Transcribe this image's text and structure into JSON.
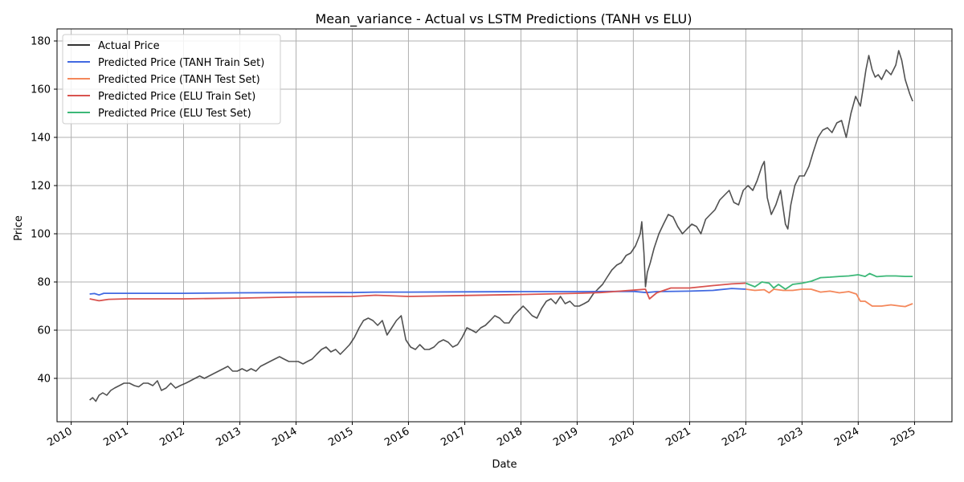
{
  "chart_data": {
    "type": "line",
    "title": "Mean_variance - Actual vs LSTM Predictions (TANH vs ELU)",
    "xlabel": "Date",
    "ylabel": "Price",
    "xlim": [
      "2009-10-01",
      "2025-09-01"
    ],
    "ylim": [
      22,
      185
    ],
    "x_ticks": [
      "2010-01-01",
      "2011-01-01",
      "2012-01-01",
      "2013-01-01",
      "2014-01-01",
      "2015-01-01",
      "2016-01-01",
      "2017-01-01",
      "2018-01-01",
      "2019-01-01",
      "2020-01-01",
      "2021-01-01",
      "2022-01-01",
      "2023-01-01",
      "2024-01-01",
      "2025-01-01"
    ],
    "x_tick_labels": [
      "2010",
      "2011",
      "2012",
      "2013",
      "2014",
      "2015",
      "2016",
      "2017",
      "2018",
      "2019",
      "2020",
      "2021",
      "2022",
      "2023",
      "2024",
      "2025"
    ],
    "y_ticks": [
      40,
      60,
      80,
      100,
      120,
      140,
      160,
      180
    ],
    "grid": true,
    "legend_position": "top-left",
    "series": [
      {
        "name": "Actual Price",
        "color": "#333333",
        "points": [
          [
            "2010-05-01",
            31
          ],
          [
            "2010-05-20",
            32
          ],
          [
            "2010-06-10",
            30.5
          ],
          [
            "2010-07-01",
            33
          ],
          [
            "2010-07-25",
            34
          ],
          [
            "2010-08-20",
            33
          ],
          [
            "2010-09-15",
            35
          ],
          [
            "2010-10-10",
            36
          ],
          [
            "2010-11-10",
            37
          ],
          [
            "2010-12-10",
            38
          ],
          [
            "2011-01-15",
            38
          ],
          [
            "2011-02-15",
            37
          ],
          [
            "2011-03-15",
            36.5
          ],
          [
            "2011-04-15",
            38
          ],
          [
            "2011-05-15",
            38
          ],
          [
            "2011-06-15",
            37
          ],
          [
            "2011-07-15",
            39
          ],
          [
            "2011-08-10",
            35
          ],
          [
            "2011-09-10",
            36
          ],
          [
            "2011-10-10",
            38
          ],
          [
            "2011-11-10",
            36
          ],
          [
            "2011-12-10",
            37
          ],
          [
            "2012-01-15",
            38
          ],
          [
            "2012-02-15",
            39
          ],
          [
            "2012-03-15",
            40
          ],
          [
            "2012-04-15",
            41
          ],
          [
            "2012-05-15",
            40
          ],
          [
            "2012-06-15",
            41
          ],
          [
            "2012-07-15",
            42
          ],
          [
            "2012-08-15",
            43
          ],
          [
            "2012-09-15",
            44
          ],
          [
            "2012-10-15",
            45
          ],
          [
            "2012-11-15",
            43
          ],
          [
            "2012-12-15",
            43
          ],
          [
            "2013-01-15",
            44
          ],
          [
            "2013-02-15",
            43
          ],
          [
            "2013-03-15",
            44
          ],
          [
            "2013-04-15",
            43
          ],
          [
            "2013-05-15",
            45
          ],
          [
            "2013-06-15",
            46
          ],
          [
            "2013-07-15",
            47
          ],
          [
            "2013-08-15",
            48
          ],
          [
            "2013-09-15",
            49
          ],
          [
            "2013-10-15",
            48
          ],
          [
            "2013-11-15",
            47
          ],
          [
            "2013-12-15",
            47
          ],
          [
            "2014-01-15",
            47
          ],
          [
            "2014-02-15",
            46
          ],
          [
            "2014-03-15",
            47
          ],
          [
            "2014-04-15",
            48
          ],
          [
            "2014-05-15",
            50
          ],
          [
            "2014-06-15",
            52
          ],
          [
            "2014-07-15",
            53
          ],
          [
            "2014-08-15",
            51
          ],
          [
            "2014-09-15",
            52
          ],
          [
            "2014-10-15",
            50
          ],
          [
            "2014-11-15",
            52
          ],
          [
            "2014-12-15",
            54
          ],
          [
            "2015-01-15",
            57
          ],
          [
            "2015-02-15",
            61
          ],
          [
            "2015-03-15",
            64
          ],
          [
            "2015-04-15",
            65
          ],
          [
            "2015-05-15",
            64
          ],
          [
            "2015-06-15",
            62
          ],
          [
            "2015-07-15",
            64
          ],
          [
            "2015-08-15",
            58
          ],
          [
            "2015-09-15",
            61
          ],
          [
            "2015-10-15",
            64
          ],
          [
            "2015-11-15",
            66
          ],
          [
            "2015-12-15",
            56
          ],
          [
            "2016-01-15",
            53
          ],
          [
            "2016-02-15",
            52
          ],
          [
            "2016-03-15",
            54
          ],
          [
            "2016-04-15",
            52
          ],
          [
            "2016-05-15",
            52
          ],
          [
            "2016-06-15",
            53
          ],
          [
            "2016-07-15",
            55
          ],
          [
            "2016-08-15",
            56
          ],
          [
            "2016-09-15",
            55
          ],
          [
            "2016-10-15",
            53
          ],
          [
            "2016-11-15",
            54
          ],
          [
            "2016-12-15",
            57
          ],
          [
            "2017-01-15",
            61
          ],
          [
            "2017-02-15",
            60
          ],
          [
            "2017-03-15",
            59
          ],
          [
            "2017-04-15",
            61
          ],
          [
            "2017-05-15",
            62
          ],
          [
            "2017-06-15",
            64
          ],
          [
            "2017-07-15",
            66
          ],
          [
            "2017-08-15",
            65
          ],
          [
            "2017-09-15",
            63
          ],
          [
            "2017-10-15",
            63
          ],
          [
            "2017-11-15",
            66
          ],
          [
            "2017-12-15",
            68
          ],
          [
            "2018-01-15",
            70
          ],
          [
            "2018-02-15",
            68
          ],
          [
            "2018-03-15",
            66
          ],
          [
            "2018-04-15",
            65
          ],
          [
            "2018-05-15",
            69
          ],
          [
            "2018-06-15",
            72
          ],
          [
            "2018-07-15",
            73
          ],
          [
            "2018-08-15",
            71
          ],
          [
            "2018-09-15",
            74
          ],
          [
            "2018-10-15",
            71
          ],
          [
            "2018-11-15",
            72
          ],
          [
            "2018-12-15",
            70
          ],
          [
            "2019-01-15",
            70
          ],
          [
            "2019-02-15",
            71
          ],
          [
            "2019-03-15",
            72
          ],
          [
            "2019-04-15",
            75
          ],
          [
            "2019-05-15",
            77
          ],
          [
            "2019-06-15",
            79
          ],
          [
            "2019-07-15",
            82
          ],
          [
            "2019-08-15",
            85
          ],
          [
            "2019-09-15",
            87
          ],
          [
            "2019-10-15",
            88
          ],
          [
            "2019-11-15",
            91
          ],
          [
            "2019-12-15",
            92
          ],
          [
            "2020-01-15",
            95
          ],
          [
            "2020-02-15",
            100
          ],
          [
            "2020-02-25",
            105
          ],
          [
            "2020-03-10",
            92
          ],
          [
            "2020-03-20",
            78
          ],
          [
            "2020-04-01",
            84
          ],
          [
            "2020-04-20",
            88
          ],
          [
            "2020-05-15",
            94
          ],
          [
            "2020-06-15",
            100
          ],
          [
            "2020-07-15",
            104
          ],
          [
            "2020-08-15",
            108
          ],
          [
            "2020-09-15",
            107
          ],
          [
            "2020-10-15",
            103
          ],
          [
            "2020-11-15",
            100
          ],
          [
            "2020-12-15",
            102
          ],
          [
            "2021-01-15",
            104
          ],
          [
            "2021-02-15",
            103
          ],
          [
            "2021-03-15",
            100
          ],
          [
            "2021-04-15",
            106
          ],
          [
            "2021-05-15",
            108
          ],
          [
            "2021-06-15",
            110
          ],
          [
            "2021-07-15",
            114
          ],
          [
            "2021-08-15",
            116
          ],
          [
            "2021-09-15",
            118
          ],
          [
            "2021-10-15",
            113
          ],
          [
            "2021-11-15",
            112
          ],
          [
            "2021-12-15",
            118
          ],
          [
            "2022-01-15",
            120
          ],
          [
            "2022-02-15",
            118
          ],
          [
            "2022-03-15",
            122
          ],
          [
            "2022-04-15",
            128
          ],
          [
            "2022-05-01",
            130
          ],
          [
            "2022-05-20",
            115
          ],
          [
            "2022-06-15",
            108
          ],
          [
            "2022-07-15",
            112
          ],
          [
            "2022-08-15",
            118
          ],
          [
            "2022-09-15",
            104
          ],
          [
            "2022-10-01",
            102
          ],
          [
            "2022-10-20",
            112
          ],
          [
            "2022-11-15",
            120
          ],
          [
            "2022-12-15",
            124
          ],
          [
            "2023-01-15",
            124
          ],
          [
            "2023-02-15",
            128
          ],
          [
            "2023-03-15",
            134
          ],
          [
            "2023-04-15",
            140
          ],
          [
            "2023-05-15",
            143
          ],
          [
            "2023-06-15",
            144
          ],
          [
            "2023-07-15",
            142
          ],
          [
            "2023-08-15",
            146
          ],
          [
            "2023-09-15",
            147
          ],
          [
            "2023-10-15",
            140
          ],
          [
            "2023-11-15",
            150
          ],
          [
            "2023-12-15",
            157
          ],
          [
            "2024-01-15",
            153
          ],
          [
            "2024-02-01",
            160
          ],
          [
            "2024-02-20",
            168
          ],
          [
            "2024-03-10",
            174
          ],
          [
            "2024-04-01",
            168
          ],
          [
            "2024-04-20",
            165
          ],
          [
            "2024-05-10",
            166
          ],
          [
            "2024-06-01",
            164
          ],
          [
            "2024-07-01",
            168
          ],
          [
            "2024-08-01",
            166
          ],
          [
            "2024-09-01",
            170
          ],
          [
            "2024-09-20",
            176
          ],
          [
            "2024-10-10",
            172
          ],
          [
            "2024-11-01",
            164
          ],
          [
            "2024-12-01",
            158
          ],
          [
            "2024-12-20",
            155
          ]
        ]
      },
      {
        "name": "Predicted Price (TANH Train Set)",
        "color": "#4169e1",
        "points": [
          [
            "2010-05-01",
            75
          ],
          [
            "2010-06-01",
            75.2
          ],
          [
            "2010-07-01",
            74.6
          ],
          [
            "2010-08-01",
            75.3
          ],
          [
            "2011-01-01",
            75.3
          ],
          [
            "2012-01-01",
            75.3
          ],
          [
            "2013-01-01",
            75.5
          ],
          [
            "2014-01-01",
            75.6
          ],
          [
            "2015-01-01",
            75.6
          ],
          [
            "2015-06-01",
            75.8
          ],
          [
            "2016-01-01",
            75.8
          ],
          [
            "2017-01-01",
            75.9
          ],
          [
            "2018-01-01",
            76
          ],
          [
            "2019-01-01",
            76
          ],
          [
            "2020-01-01",
            76.1
          ],
          [
            "2020-03-25",
            75.6
          ],
          [
            "2020-06-01",
            76
          ],
          [
            "2021-01-01",
            76.2
          ],
          [
            "2021-06-01",
            76.5
          ],
          [
            "2021-10-01",
            77.3
          ],
          [
            "2022-01-01",
            77
          ]
        ]
      },
      {
        "name": "Predicted Price (TANH Test Set)",
        "color": "#f4875a",
        "points": [
          [
            "2022-01-01",
            77
          ],
          [
            "2022-03-01",
            76.5
          ],
          [
            "2022-05-01",
            76.8
          ],
          [
            "2022-06-01",
            75.5
          ],
          [
            "2022-07-01",
            77
          ],
          [
            "2022-09-01",
            76.5
          ],
          [
            "2022-11-01",
            76.5
          ],
          [
            "2023-01-01",
            77
          ],
          [
            "2023-03-01",
            77
          ],
          [
            "2023-05-01",
            75.8
          ],
          [
            "2023-07-01",
            76.2
          ],
          [
            "2023-09-01",
            75.5
          ],
          [
            "2023-11-01",
            76
          ],
          [
            "2023-12-20",
            75
          ],
          [
            "2024-01-15",
            72
          ],
          [
            "2024-02-15",
            72
          ],
          [
            "2024-04-01",
            70
          ],
          [
            "2024-06-01",
            70
          ],
          [
            "2024-08-01",
            70.5
          ],
          [
            "2024-10-01",
            70
          ],
          [
            "2024-11-01",
            69.8
          ],
          [
            "2024-12-20",
            71
          ]
        ]
      },
      {
        "name": "Predicted Price (ELU Train Set)",
        "color": "#d9534f",
        "points": [
          [
            "2010-05-01",
            73
          ],
          [
            "2010-07-01",
            72.2
          ],
          [
            "2010-09-01",
            72.8
          ],
          [
            "2011-01-01",
            73
          ],
          [
            "2012-01-01",
            73
          ],
          [
            "2013-01-01",
            73.3
          ],
          [
            "2014-01-01",
            73.8
          ],
          [
            "2015-01-01",
            74
          ],
          [
            "2015-06-01",
            74.5
          ],
          [
            "2016-01-01",
            74
          ],
          [
            "2017-01-01",
            74.4
          ],
          [
            "2018-01-01",
            74.8
          ],
          [
            "2019-01-01",
            75.3
          ],
          [
            "2019-06-01",
            75.6
          ],
          [
            "2020-01-01",
            76.6
          ],
          [
            "2020-03-20",
            77
          ],
          [
            "2020-04-15",
            73
          ],
          [
            "2020-06-01",
            75.5
          ],
          [
            "2020-09-01",
            77.5
          ],
          [
            "2021-01-01",
            77.5
          ],
          [
            "2021-06-01",
            78.5
          ],
          [
            "2021-10-01",
            79.2
          ],
          [
            "2022-01-01",
            79.5
          ]
        ]
      },
      {
        "name": "Predicted Price (ELU Test Set)",
        "color": "#3cb878",
        "points": [
          [
            "2022-01-01",
            79.5
          ],
          [
            "2022-03-01",
            78
          ],
          [
            "2022-04-15",
            80
          ],
          [
            "2022-06-01",
            79.5
          ],
          [
            "2022-07-01",
            77.5
          ],
          [
            "2022-08-01",
            79
          ],
          [
            "2022-09-15",
            77
          ],
          [
            "2022-11-01",
            79
          ],
          [
            "2023-01-01",
            79.5
          ],
          [
            "2023-03-01",
            80.3
          ],
          [
            "2023-05-01",
            81.8
          ],
          [
            "2023-07-01",
            82
          ],
          [
            "2023-09-01",
            82.3
          ],
          [
            "2023-11-01",
            82.5
          ],
          [
            "2024-01-01",
            83
          ],
          [
            "2024-02-15",
            82.3
          ],
          [
            "2024-03-15",
            83.5
          ],
          [
            "2024-05-01",
            82.2
          ],
          [
            "2024-07-01",
            82.5
          ],
          [
            "2024-09-01",
            82.5
          ],
          [
            "2024-11-01",
            82.3
          ],
          [
            "2024-12-20",
            82.3
          ]
        ]
      }
    ]
  }
}
